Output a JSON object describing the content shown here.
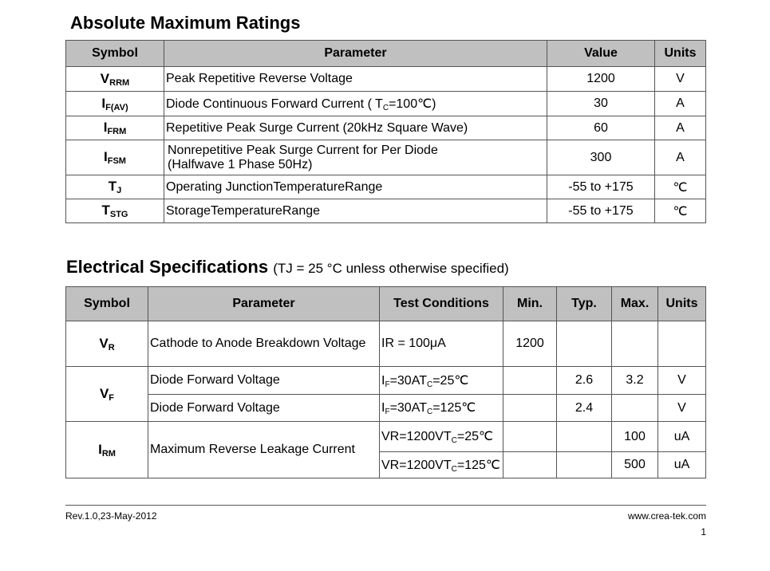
{
  "amr": {
    "title": "Absolute Maximum Ratings",
    "headers": [
      "Symbol",
      "Parameter",
      "Value",
      "Units"
    ],
    "rows": [
      {
        "symbol": [
          "V",
          "RRM"
        ],
        "parameter": [
          "Peak Repetitive Reverse Voltage"
        ],
        "value": "1200",
        "units": "V"
      },
      {
        "symbol": [
          "I",
          "F(AV)"
        ],
        "parameter": [
          " Diode Continuous Forward Current ( T",
          {
            "sub": "C"
          },
          "=100℃)"
        ],
        "value": "30",
        "units": "A"
      },
      {
        "symbol": [
          "I",
          "FRM"
        ],
        "parameter": [
          "Repetitive Peak Surge Current (20kHz Square Wave)"
        ],
        "value": "60",
        "units": "A"
      },
      {
        "symbol": [
          "I",
          "FSM"
        ],
        "parameter_lines": [
          "Nonrepetitive Peak Surge Current for Per Diode",
          "(Halfwave 1 Phase 50Hz)"
        ],
        "value": "300",
        "units": "A"
      },
      {
        "symbol": [
          "T",
          "J"
        ],
        "parameter": [
          " Operating JunctionTemperatureRange"
        ],
        "value": "-55 to +175",
        "units": "℃"
      },
      {
        "symbol": [
          "T",
          "STG"
        ],
        "parameter": [
          "StorageTemperatureRange"
        ],
        "value": "-55 to +175",
        "units": "℃"
      }
    ]
  },
  "es": {
    "title": "Electrical Specifications",
    "subtitle": "(TJ = 25 °C unless otherwise specified)",
    "headers": [
      "Symbol",
      "Parameter",
      "Test Conditions",
      "Min.",
      "Typ.",
      "Max.",
      "Units"
    ],
    "groups": [
      {
        "symbol": [
          "V",
          "R"
        ],
        "rows": [
          {
            "parameter": "Cathode to Anode Breakdown Voltage",
            "conditions": [
              "IR = 100μA"
            ],
            "min": "1200"
          }
        ]
      },
      {
        "symbol": [
          "V",
          "F"
        ],
        "rows": [
          {
            "parameter": "Diode Forward Voltage",
            "conditions": [
              "I",
              {
                "sub": "F"
              },
              "=30AT",
              {
                "sub": "C"
              },
              "=25℃"
            ],
            "typ": "2.6",
            "max": "3.2",
            "units": "V"
          },
          {
            "parameter": "Diode Forward Voltage",
            "conditions": [
              "I",
              {
                "sub": "F"
              },
              "=30AT",
              {
                "sub": "C"
              },
              "=125℃"
            ],
            "typ": "2.4",
            "units": "V"
          }
        ]
      },
      {
        "symbol": [
          "I",
          "RM"
        ],
        "parameter": "Maximum Reverse Leakage Current",
        "rows": [
          {
            "conditions": [
              "VR=1200VT",
              {
                "sub": "C"
              },
              "=25℃"
            ],
            "max": "100",
            "units": "uA"
          },
          {
            "conditions": [
              "VR=1200VT",
              {
                "sub": "C"
              },
              "=125℃"
            ],
            "max": "500",
            "units": "uA"
          }
        ]
      }
    ]
  },
  "footer": {
    "revision": "Rev.1.0,23-May-2012",
    "website": "www.crea-tek.com",
    "page": "1"
  }
}
